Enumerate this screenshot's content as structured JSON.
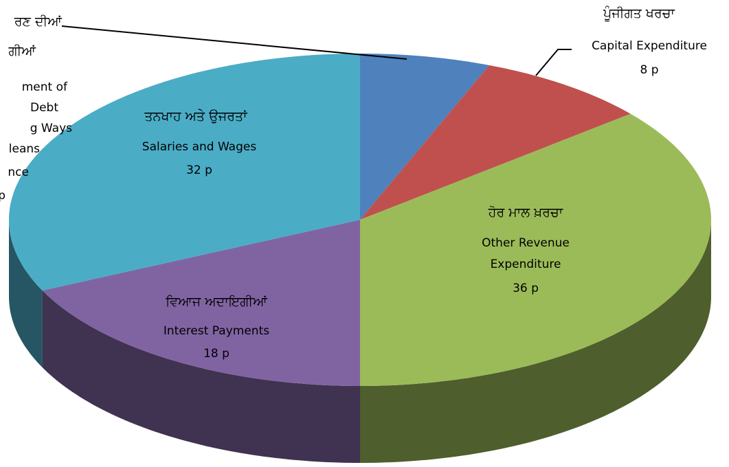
{
  "chart_data": {
    "type": "pie",
    "three_d": true,
    "categories": [
      [
        "ment of",
        "Debt",
        "g Ways",
        "leans",
        "nce",
        "p"
      ],
      [
        "Capital Expenditure"
      ],
      [
        "Other Revenue",
        "Expenditure"
      ],
      [
        "Interest Payments"
      ],
      [
        "Salaries and Wages"
      ]
    ],
    "labels_pa": [
      [
        "ਰਣ ਦੀਆਂ",
        "ਗੀਆਂ"
      ],
      [
        "ਪੂੰਜੀਗਤ ਖਰਚਾ"
      ],
      [
        "ਹੋਰ ਮਾਲ ਖ਼ਰਚਾ"
      ],
      [
        "ਵਿਆਜ ਅਦਾਇਗੀਆਂ"
      ],
      [
        "ਤਨਖਾਹ ਅਤੇ ਉਜਰਤਾਂ"
      ]
    ],
    "values": [
      6,
      8,
      36,
      18,
      32
    ],
    "value_labels": [
      null,
      "8 p",
      "36 p",
      "18 p",
      "32 p"
    ],
    "colors": [
      "#4f81bd",
      "#c0504d",
      "#9bbb59",
      "#8064a2",
      "#4bacc6"
    ]
  }
}
